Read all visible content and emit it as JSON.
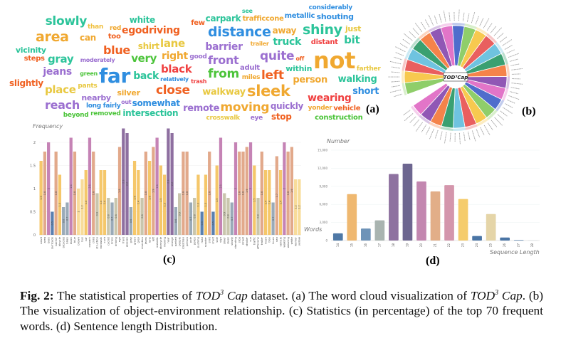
{
  "panel_labels": {
    "a": "(a)",
    "b": "(b)",
    "c": "(c)",
    "d": "(d)"
  },
  "word_cloud": {
    "words": [
      {
        "text": "slowly",
        "color": "#2cc49a"
      },
      {
        "text": "area",
        "color": "#f0a830"
      },
      {
        "text": "than",
        "color": "#f0c040"
      },
      {
        "text": "can",
        "color": "#f0a830"
      },
      {
        "text": "vicinity",
        "color": "#2cc49a"
      },
      {
        "text": "steps",
        "color": "#f06020"
      },
      {
        "text": "gray",
        "color": "#2cc49a"
      },
      {
        "text": "jeans",
        "color": "#9b6fd0"
      },
      {
        "text": "slightly",
        "color": "#f06020"
      },
      {
        "text": "place",
        "color": "#e8c840"
      },
      {
        "text": "nearby",
        "color": "#9b6fd0"
      },
      {
        "text": "reach",
        "color": "#9b6fd0"
      },
      {
        "text": "white",
        "color": "#2cc49a"
      },
      {
        "text": "red",
        "color": "#f0a830"
      },
      {
        "text": "egodriving",
        "color": "#f06020"
      },
      {
        "text": "too",
        "color": "#f06020"
      },
      {
        "text": "moderately",
        "color": "#9b6fd0"
      },
      {
        "text": "lane",
        "color": "#e8c840"
      },
      {
        "text": "blue",
        "color": "#f06020"
      },
      {
        "text": "shirt",
        "color": "#e8c840"
      },
      {
        "text": "very",
        "color": "#4cc43a"
      },
      {
        "text": "right",
        "color": "#f0a830"
      },
      {
        "text": "long fairly",
        "color": "#2f8ee0"
      },
      {
        "text": "black",
        "color": "#f04040"
      },
      {
        "text": "green",
        "color": "#4cc43a"
      },
      {
        "text": "far",
        "color": "#2f8ee0"
      },
      {
        "text": "good",
        "color": "#9b6fd0"
      },
      {
        "text": "back",
        "color": "#2cc49a"
      },
      {
        "text": "removed",
        "color": "#4cc43a"
      },
      {
        "text": "relatively",
        "color": "#2f8ee0"
      },
      {
        "text": "silver",
        "color": "#f0a830"
      },
      {
        "text": "close",
        "color": "#f06020"
      },
      {
        "text": "beyond",
        "color": "#4cc43a"
      },
      {
        "text": "somewhat",
        "color": "#2f8ee0"
      },
      {
        "text": "intersection",
        "color": "#2cc49a"
      },
      {
        "text": "out",
        "color": "#9b6fd0"
      },
      {
        "text": "pants",
        "color": "#e8c840"
      },
      {
        "text": "few",
        "color": "#f06020"
      },
      {
        "text": "trafficcone",
        "color": "#f0a830"
      },
      {
        "text": "see",
        "color": "#2cc49a"
      },
      {
        "text": "distance",
        "color": "#2f8ee0"
      },
      {
        "text": "carpark",
        "color": "#2cc49a"
      },
      {
        "text": "trailer",
        "color": "#f0a830"
      },
      {
        "text": "away",
        "color": "#f0a830"
      },
      {
        "text": "truck",
        "color": "#2cc49a"
      },
      {
        "text": "barrier",
        "color": "#9b6fd0"
      },
      {
        "text": "quite",
        "color": "#9b6fd0"
      },
      {
        "text": "adult",
        "color": "#9b6fd0"
      },
      {
        "text": "front",
        "color": "#9b6fd0"
      },
      {
        "text": "person",
        "color": "#f0a830"
      },
      {
        "text": "within",
        "color": "#2cc49a"
      },
      {
        "text": "from",
        "color": "#4cc43a"
      },
      {
        "text": "off",
        "color": "#f06020"
      },
      {
        "text": "left",
        "color": "#f06020"
      },
      {
        "text": "crosswalk",
        "color": "#e8c840"
      },
      {
        "text": "quickly",
        "color": "#9b6fd0"
      },
      {
        "text": "miles",
        "color": "#f0a830"
      },
      {
        "text": "sleek",
        "color": "#f0a830"
      },
      {
        "text": "walkway",
        "color": "#e8c840"
      },
      {
        "text": "trash",
        "color": "#f04040"
      },
      {
        "text": "stop",
        "color": "#f06020"
      },
      {
        "text": "moving",
        "color": "#f0a830"
      },
      {
        "text": "eye",
        "color": "#9b6fd0"
      },
      {
        "text": "remote",
        "color": "#9b6fd0"
      },
      {
        "text": "shouting",
        "color": "#2f8ee0"
      },
      {
        "text": "shiny",
        "color": "#2cc49a"
      },
      {
        "text": "just",
        "color": "#e8c840"
      },
      {
        "text": "bit",
        "color": "#2cc49a"
      },
      {
        "text": "not",
        "color": "#f0a830"
      },
      {
        "text": "considerably",
        "color": "#2f8ee0"
      },
      {
        "text": "walking",
        "color": "#2cc49a"
      },
      {
        "text": "vehicle",
        "color": "#f06020"
      },
      {
        "text": "short",
        "color": "#2f8ee0"
      },
      {
        "text": "construction",
        "color": "#4cc43a"
      },
      {
        "text": "distant",
        "color": "#f04040"
      },
      {
        "text": "wearing",
        "color": "#f04040"
      },
      {
        "text": "yonder",
        "color": "#f0a830"
      },
      {
        "text": "farther",
        "color": "#e8c840"
      },
      {
        "text": "metallic",
        "color": "#2f8ee0"
      }
    ]
  },
  "sunburst": {
    "center_label": "TOD³Cap",
    "colors": [
      "#8fce6a",
      "#f7c94f",
      "#e95f5f",
      "#6fc3e0",
      "#3aa071",
      "#f5834a",
      "#9057b5",
      "#e275c8",
      "#4f6dcc"
    ]
  },
  "chart_data": [
    {
      "type": "bar",
      "title": "",
      "ylabel": "Frequency",
      "xlabel": "Words",
      "ylim": [
        0,
        2.4
      ],
      "yticks": [
        "0",
        "0.5",
        "1",
        "1.5",
        "2"
      ],
      "grid": true,
      "categories": [
        "adult",
        "area",
        "back",
        "barricade",
        "barrier",
        "bicycle",
        "bicyclist",
        "bikes",
        "black",
        "blue",
        "brown",
        "bus",
        "car",
        "carpark",
        "child",
        "construction",
        "crosswalk",
        "curb",
        "cyclist",
        "dress",
        "driving",
        "ego",
        "front",
        "glasses",
        "gray",
        "green",
        "grey",
        "intersection",
        "jeans",
        "lane",
        "left",
        "metallic",
        "motorcycle",
        "moving",
        "near",
        "orange",
        "parked",
        "people",
        "pedestrian",
        "person",
        "pole",
        "police",
        "pushing",
        "road",
        "scooter",
        "shirt",
        "short",
        "side",
        "sign",
        "silver",
        "sleek",
        "slowly",
        "standing",
        "stop",
        "street",
        "stroller",
        "suv",
        "traffic",
        "trafficcone",
        "trailer",
        "trash",
        "tree",
        "truck",
        "van",
        "vehicle",
        "walking",
        "wearing",
        "white",
        "worker",
        "yellow"
      ],
      "values": [
        1.6,
        1.8,
        2.0,
        0.5,
        1.8,
        1.3,
        0.6,
        0.7,
        2.1,
        1.8,
        1.0,
        1.2,
        1.4,
        2.1,
        1.8,
        0.9,
        1.4,
        1.4,
        0.8,
        0.7,
        0.8,
        1.9,
        2.3,
        2.2,
        0.6,
        1.6,
        1.4,
        0.8,
        1.8,
        1.6,
        1.9,
        2.1,
        1.5,
        1.3,
        2.3,
        2.2,
        0.6,
        0.9,
        1.8,
        1.8,
        0.7,
        0.8,
        1.3,
        0.5,
        1.3,
        1.8,
        0.5,
        1.5,
        2.1,
        0.9,
        0.8,
        0.7,
        2.0,
        1.8,
        1.8,
        1.9,
        2.0,
        1.5,
        0.8,
        1.8,
        1.4,
        1.4,
        0.7,
        1.7,
        1.4,
        2.0,
        1.8,
        1.9,
        1.2,
        1.2
      ]
    },
    {
      "type": "bar",
      "title": "",
      "ylabel": "Number",
      "xlabel": "Sequence Length",
      "ylim": [
        0,
        15000
      ],
      "yticks": [
        "0",
        "3,000",
        "6,000",
        "9,000",
        "12,000",
        "15,000"
      ],
      "grid": true,
      "categories": [
        "14",
        "15",
        "16",
        "17",
        "18",
        "19",
        "20",
        "21",
        "22",
        "23",
        "24",
        "25",
        "26",
        "27",
        "28"
      ],
      "values": [
        1200,
        7700,
        2000,
        3350,
        11050,
        12750,
        9800,
        8150,
        9200,
        6900,
        750,
        4400,
        500,
        100,
        20
      ],
      "colors": [
        "#4f79a6",
        "#efb870",
        "#6e93b8",
        "#a9b4b0",
        "#8e72a0",
        "#6d6690",
        "#c387b0",
        "#e2ae88",
        "#d496ac",
        "#f5cc6c",
        "#4a75a5",
        "#e5d5a8",
        "#4a75a5",
        "#6e93b8",
        "#9aaab8"
      ]
    }
  ],
  "caption": {
    "fig_label": "Fig. 2:",
    "part1": " The statistical properties of ",
    "tod": "TOD",
    "sup": "3",
    "cap": " Cap",
    "part2": " dataset. (a) The word cloud visualization of ",
    "part3": ". (b) The visualization of object-environment relationship. (c) Statistics (in percentage) of the top 70 frequent words. (d) Sentence length Distribution."
  }
}
